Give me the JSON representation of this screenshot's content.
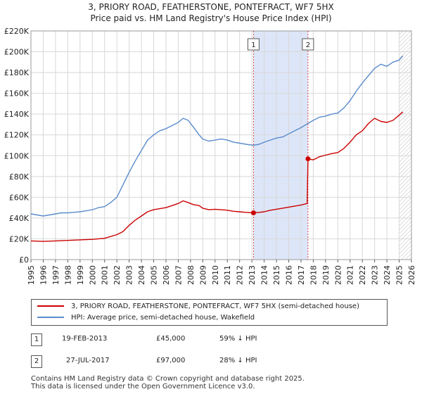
{
  "title_line1": "3, PRIORY ROAD, FEATHERSTONE, PONTEFRACT, WF7 5HX",
  "title_line2": "Price paid vs. HM Land Registry's House Price Index (HPI)",
  "colors": {
    "property": "#cc0000",
    "hpi": "#5b8ccc",
    "shade": "#dde6f8",
    "grid": "#d8d8d8",
    "marker_line": "#cc0000"
  },
  "chart_data": {
    "type": "line",
    "x_range": [
      1995,
      2026
    ],
    "ylim": [
      0,
      220000
    ],
    "y_ticks": [
      {
        "value": 0,
        "label": "£0"
      },
      {
        "value": 20000,
        "label": "£20K"
      },
      {
        "value": 40000,
        "label": "£40K"
      },
      {
        "value": 60000,
        "label": "£60K"
      },
      {
        "value": 80000,
        "label": "£80K"
      },
      {
        "value": 100000,
        "label": "£100K"
      },
      {
        "value": 120000,
        "label": "£120K"
      },
      {
        "value": 140000,
        "label": "£140K"
      },
      {
        "value": 160000,
        "label": "£160K"
      },
      {
        "value": 180000,
        "label": "£180K"
      },
      {
        "value": 200000,
        "label": "£200K"
      },
      {
        "value": 220000,
        "label": "£220K"
      }
    ],
    "x_ticks": [
      "1995",
      "1996",
      "1997",
      "1998",
      "1999",
      "2000",
      "2001",
      "2002",
      "2003",
      "2004",
      "2005",
      "2006",
      "2007",
      "2008",
      "2009",
      "2010",
      "2011",
      "2012",
      "2013",
      "2014",
      "2015",
      "2016",
      "2017",
      "2018",
      "2019",
      "2020",
      "2021",
      "2022",
      "2023",
      "2024",
      "2025",
      "2026"
    ],
    "shaded_span": [
      2013.13,
      2017.57
    ],
    "hatched_from": 2025.0,
    "series": [
      {
        "name": "3, PRIORY ROAD, FEATHERSTONE, PONTEFRACT, WF7 5HX (semi-detached house)",
        "color": "#cc0000",
        "points": [
          [
            1995,
            18000
          ],
          [
            1996,
            17500
          ],
          [
            1997,
            18000
          ],
          [
            1998,
            18500
          ],
          [
            1999,
            19000
          ],
          [
            2000,
            19500
          ],
          [
            2001,
            20500
          ],
          [
            2002,
            24000
          ],
          [
            2002.5,
            27000
          ],
          [
            2003,
            33000
          ],
          [
            2003.5,
            38000
          ],
          [
            2004,
            42000
          ],
          [
            2004.5,
            46000
          ],
          [
            2005,
            48000
          ],
          [
            2005.5,
            49000
          ],
          [
            2006,
            50000
          ],
          [
            2006.5,
            52000
          ],
          [
            2007,
            54000
          ],
          [
            2007.4,
            56500
          ],
          [
            2007.8,
            55000
          ],
          [
            2008.2,
            53000
          ],
          [
            2008.7,
            52000
          ],
          [
            2009,
            49500
          ],
          [
            2009.5,
            48000
          ],
          [
            2010,
            48500
          ],
          [
            2010.5,
            48000
          ],
          [
            2011,
            47500
          ],
          [
            2011.5,
            46500
          ],
          [
            2012,
            46000
          ],
          [
            2012.5,
            45500
          ],
          [
            2013.13,
            45000
          ],
          [
            2013.6,
            45500
          ],
          [
            2014,
            46000
          ],
          [
            2014.5,
            47500
          ],
          [
            2015,
            48500
          ],
          [
            2015.5,
            49500
          ],
          [
            2016,
            50500
          ],
          [
            2016.5,
            51500
          ],
          [
            2017,
            52500
          ],
          [
            2017.5,
            54000
          ],
          [
            2017.57,
            97000
          ],
          [
            2018,
            96000
          ],
          [
            2018.5,
            99000
          ],
          [
            2019,
            100500
          ],
          [
            2019.5,
            102000
          ],
          [
            2020,
            103000
          ],
          [
            2020.5,
            107000
          ],
          [
            2021,
            113000
          ],
          [
            2021.5,
            120000
          ],
          [
            2022,
            124000
          ],
          [
            2022.5,
            131000
          ],
          [
            2023,
            136000
          ],
          [
            2023.5,
            133000
          ],
          [
            2024,
            132000
          ],
          [
            2024.5,
            134000
          ],
          [
            2025,
            139000
          ],
          [
            2025.3,
            142000
          ]
        ]
      },
      {
        "name": "HPI: Average price, semi-detached house, Wakefield",
        "color": "#5b8ccc",
        "points": [
          [
            1995,
            44000
          ],
          [
            1995.5,
            43000
          ],
          [
            1996,
            42000
          ],
          [
            1996.5,
            43000
          ],
          [
            1997,
            44000
          ],
          [
            1997.5,
            45000
          ],
          [
            1998,
            45000
          ],
          [
            1998.5,
            45500
          ],
          [
            1999,
            46000
          ],
          [
            1999.5,
            47000
          ],
          [
            2000,
            48000
          ],
          [
            2000.5,
            50000
          ],
          [
            2001,
            51000
          ],
          [
            2001.5,
            55000
          ],
          [
            2002,
            60000
          ],
          [
            2002.5,
            72000
          ],
          [
            2003,
            84000
          ],
          [
            2003.5,
            95000
          ],
          [
            2004,
            105000
          ],
          [
            2004.5,
            115000
          ],
          [
            2005,
            120000
          ],
          [
            2005.5,
            124000
          ],
          [
            2006,
            126000
          ],
          [
            2006.5,
            129000
          ],
          [
            2007,
            132000
          ],
          [
            2007.4,
            136000
          ],
          [
            2007.8,
            134000
          ],
          [
            2008.2,
            128000
          ],
          [
            2008.7,
            120000
          ],
          [
            2009,
            116000
          ],
          [
            2009.5,
            114000
          ],
          [
            2010,
            115000
          ],
          [
            2010.5,
            116000
          ],
          [
            2011,
            115000
          ],
          [
            2011.5,
            113000
          ],
          [
            2012,
            112000
          ],
          [
            2012.5,
            111000
          ],
          [
            2013.13,
            110000
          ],
          [
            2013.6,
            111000
          ],
          [
            2014,
            113000
          ],
          [
            2014.5,
            115000
          ],
          [
            2015,
            117000
          ],
          [
            2015.5,
            118000
          ],
          [
            2016,
            121000
          ],
          [
            2016.5,
            124000
          ],
          [
            2017,
            127000
          ],
          [
            2017.57,
            131000
          ],
          [
            2018,
            134000
          ],
          [
            2018.5,
            137000
          ],
          [
            2019,
            138000
          ],
          [
            2019.5,
            140000
          ],
          [
            2020,
            141000
          ],
          [
            2020.5,
            146000
          ],
          [
            2021,
            153000
          ],
          [
            2021.5,
            162000
          ],
          [
            2022,
            170000
          ],
          [
            2022.5,
            177000
          ],
          [
            2023,
            184000
          ],
          [
            2023.5,
            188000
          ],
          [
            2024,
            186000
          ],
          [
            2024.5,
            190000
          ],
          [
            2025,
            192000
          ],
          [
            2025.3,
            196000
          ]
        ]
      }
    ],
    "sales": [
      {
        "label": "1",
        "x": 2013.13,
        "y": 45000
      },
      {
        "label": "2",
        "x": 2017.57,
        "y": 97000
      }
    ]
  },
  "legend": {
    "property_label": "3, PRIORY ROAD, FEATHERSTONE, PONTEFRACT, WF7 5HX (semi-detached house)",
    "hpi_label": "HPI: Average price, semi-detached house, Wakefield"
  },
  "transactions": [
    {
      "num": "1",
      "date": "19-FEB-2013",
      "price": "£45,000",
      "hpi": "59% ↓ HPI"
    },
    {
      "num": "2",
      "date": "27-JUL-2017",
      "price": "£97,000",
      "hpi": "28% ↓ HPI"
    }
  ],
  "footer_line1": "Contains HM Land Registry data © Crown copyright and database right 2025.",
  "footer_line2": "This data is licensed under the Open Government Licence v3.0."
}
